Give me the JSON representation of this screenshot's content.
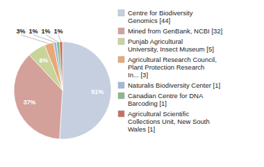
{
  "chart_data": {
    "type": "pie",
    "categories": [
      "Centre for Biodiversity\nGenomics [44]",
      "Mined from GenBank, NCBI [32]",
      "Punjab Agricultural\nUniversity, Insect Museum [5]",
      "Agricultural Research Council,\nPlant Protection Research\nIn... [3]",
      "Naturalis Biodiversity Center [1]",
      "Canadian Centre for DNA\nBarcoding [1]",
      "Agricultural Scientific\nCollections Unit, New South\nWales [1]"
    ],
    "values": [
      51,
      37,
      6,
      3,
      1,
      1,
      1
    ],
    "value_labels": [
      "51%",
      "37%",
      "6%",
      "3%",
      "1%",
      "1%",
      "1%"
    ],
    "colors": [
      "#c5cfe0",
      "#d4a09a",
      "#c8d49a",
      "#e8a878",
      "#a0b8d8",
      "#8ab88a",
      "#c87060"
    ],
    "data_labels": true,
    "legend": "right"
  }
}
